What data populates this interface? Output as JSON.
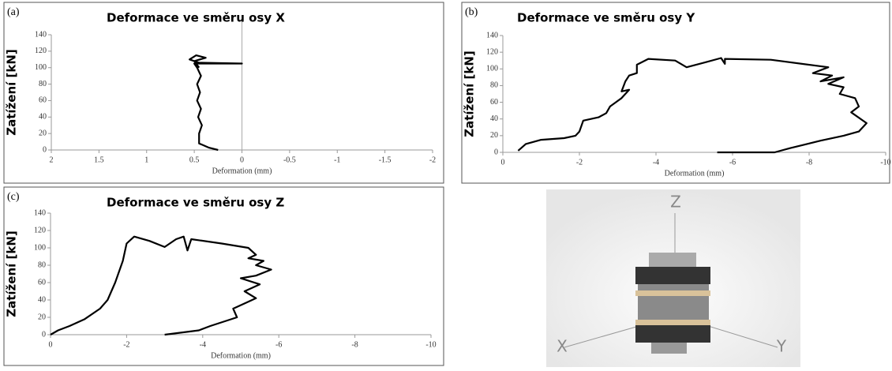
{
  "chart_data": [
    {
      "type": "line",
      "panel": "(a)",
      "title": "Deformace ve směru osy X",
      "ylabel": "Zatížení [kN]",
      "xlabel": "Deformation (mm)",
      "xlim": [
        2,
        -2
      ],
      "xticks": [
        2,
        1.5,
        1,
        0.5,
        0,
        -0.5,
        -1,
        -1.5,
        -2
      ],
      "ylim": [
        0,
        140
      ],
      "yticks": [
        0,
        20,
        40,
        60,
        80,
        100,
        120,
        140
      ],
      "zero_line": true,
      "color": "#000000",
      "x": [
        0.25,
        0.35,
        0.45,
        0.45,
        0.42,
        0.46,
        0.43,
        0.47,
        0.44,
        0.47,
        0.43,
        0.47,
        0.5,
        0.0,
        0.45,
        0.55,
        0.48,
        0.38,
        0.5,
        0.45
      ],
      "values": [
        0,
        3,
        8,
        20,
        30,
        40,
        50,
        60,
        70,
        80,
        90,
        100,
        105,
        105,
        106,
        110,
        115,
        112,
        108,
        100
      ]
    },
    {
      "type": "line",
      "panel": "(b)",
      "title": "Deformace ve směru osy Y",
      "ylabel": "Zatížení [kN]",
      "xlabel": "Deformation (mm)",
      "xlim": [
        0,
        -10
      ],
      "xticks": [
        0,
        -2,
        -4,
        -6,
        -8,
        -10
      ],
      "ylim": [
        0,
        140
      ],
      "yticks": [
        0,
        20,
        40,
        60,
        80,
        100,
        120,
        140
      ],
      "zero_line": false,
      "color": "#000000",
      "x": [
        -0.4,
        -0.6,
        -1,
        -1.6,
        -1.9,
        -2,
        -2.1,
        -2.5,
        -2.7,
        -2.8,
        -3.1,
        -3.3,
        -3.1,
        -3.2,
        -3.3,
        -3.5,
        -3.5,
        -3.8,
        -4.5,
        -4.8,
        -5.3,
        -5.7,
        -5.8,
        -5.8,
        -7,
        -8.5,
        -8.1,
        -8.6,
        -8.3,
        -8.9,
        -8.5,
        -8.9,
        -8.8,
        -9.2,
        -9.3,
        -9.1,
        -9.5,
        -9.3,
        -8.9,
        -8.3,
        -7.5,
        -7.1,
        -5.6
      ],
      "values": [
        2,
        10,
        15,
        17,
        20,
        25,
        38,
        42,
        47,
        55,
        65,
        75,
        73,
        85,
        92,
        95,
        105,
        112,
        110,
        102,
        108,
        113,
        106,
        112,
        111,
        102,
        95,
        92,
        85,
        90,
        82,
        78,
        70,
        65,
        55,
        48,
        35,
        25,
        20,
        14,
        5,
        0,
        0
      ]
    },
    {
      "type": "line",
      "panel": "(c)",
      "title": "Deformace ve směru osy Z",
      "ylabel": "Zatížení [kN]",
      "xlabel": "Deformation (mm)",
      "xlim": [
        0,
        -10
      ],
      "xticks": [
        0,
        -2,
        -4,
        -6,
        -8,
        -10
      ],
      "ylim": [
        0,
        140
      ],
      "yticks": [
        0,
        20,
        40,
        60,
        80,
        100,
        120,
        140
      ],
      "zero_line": false,
      "color": "#000000",
      "x": [
        0,
        -0.2,
        -0.5,
        -0.9,
        -1.3,
        -1.5,
        -1.7,
        -1.9,
        -2.0,
        -2.2,
        -2.6,
        -3.0,
        -3.3,
        -3.5,
        -3.6,
        -3.7,
        -4.5,
        -5.2,
        -5.4,
        -5.2,
        -5.6,
        -5.4,
        -5.8,
        -5.4,
        -5,
        -5.5,
        -5.1,
        -5.4,
        -4.8,
        -4.9,
        -4.2,
        -3.9,
        -3.0
      ],
      "values": [
        0,
        5,
        10,
        18,
        30,
        40,
        60,
        85,
        105,
        113,
        108,
        101,
        110,
        113,
        97,
        110,
        105,
        100,
        92,
        88,
        85,
        80,
        75,
        68,
        65,
        58,
        50,
        42,
        30,
        20,
        10,
        5,
        0
      ]
    }
  ],
  "image": {
    "axis_labels": {
      "z": "Z",
      "x": "X",
      "y": "Y"
    }
  }
}
